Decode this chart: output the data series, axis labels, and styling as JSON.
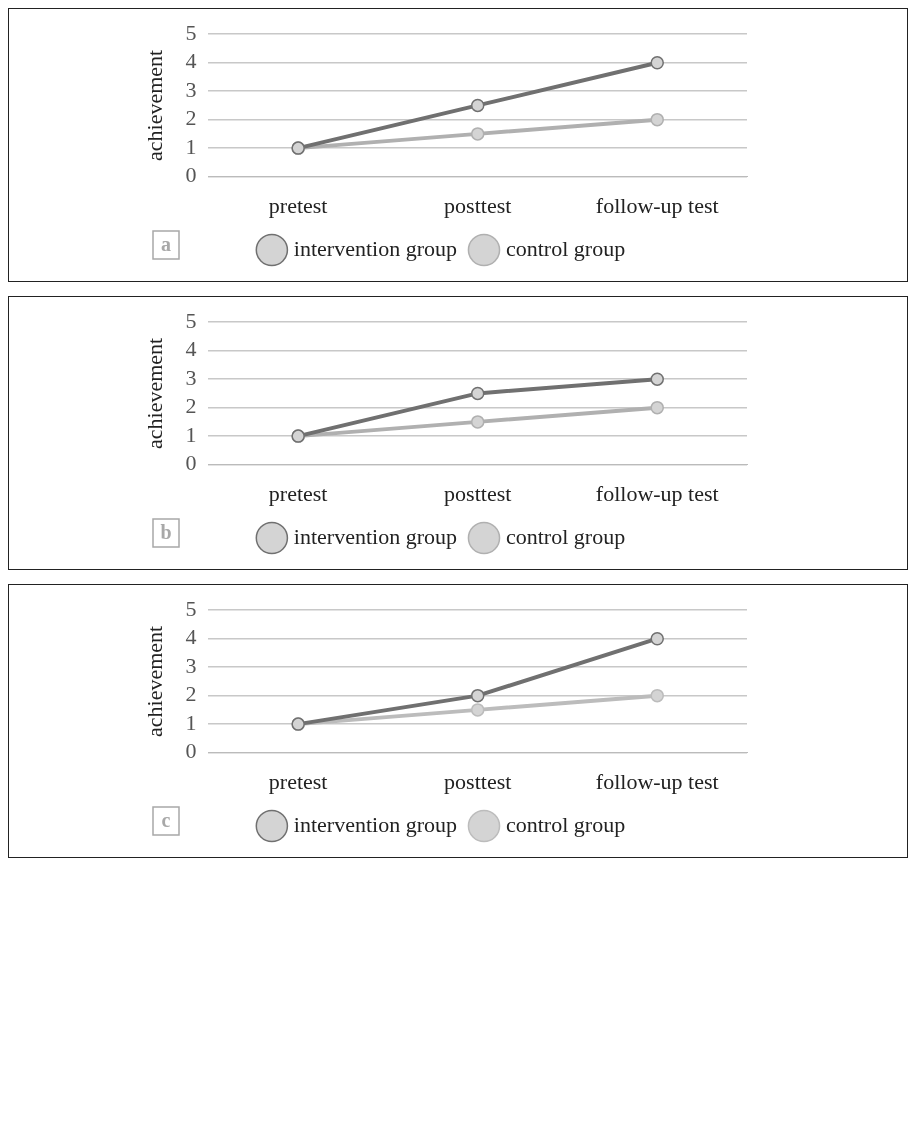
{
  "chart_data": [
    {
      "type": "line",
      "ylabel": "achievement",
      "categories": [
        "pretest",
        "posttest",
        "follow-up test"
      ],
      "ylim": [
        0,
        5
      ],
      "yticks": [
        0,
        1,
        2,
        3,
        4,
        5
      ],
      "grid": "y",
      "legend": "bottom",
      "marker": "circle",
      "annotations": [
        "a"
      ],
      "series": [
        {
          "name": "intervention group",
          "color": "#707070",
          "values": [
            1,
            2.5,
            4
          ]
        },
        {
          "name": "control group",
          "color": "#b0b0b0",
          "values": [
            1,
            1.5,
            2
          ]
        }
      ]
    },
    {
      "type": "line",
      "ylabel": "achievement",
      "categories": [
        "pretest",
        "posttest",
        "follow-up test"
      ],
      "ylim": [
        0,
        5
      ],
      "yticks": [
        0,
        1,
        2,
        3,
        4,
        5
      ],
      "grid": "y",
      "legend": "bottom",
      "marker": "circle",
      "annotations": [
        "b"
      ],
      "series": [
        {
          "name": "intervention group",
          "color": "#707070",
          "values": [
            1,
            2.5,
            3
          ]
        },
        {
          "name": "control group",
          "color": "#b0b0b0",
          "values": [
            1,
            1.5,
            2
          ]
        }
      ]
    },
    {
      "type": "line",
      "ylabel": "achievement",
      "categories": [
        "pretest",
        "posttest",
        "follow-up test"
      ],
      "ylim": [
        0,
        5
      ],
      "yticks": [
        0,
        1,
        2,
        3,
        4,
        5
      ],
      "grid": "y",
      "legend": "bottom",
      "marker": "circle",
      "annotations": [
        "c"
      ],
      "series": [
        {
          "name": "intervention group",
          "color": "#707070",
          "values": [
            1,
            2,
            4
          ]
        },
        {
          "name": "control group",
          "color": "#bcbcbc",
          "values": [
            1,
            1.5,
            2
          ]
        }
      ]
    }
  ]
}
